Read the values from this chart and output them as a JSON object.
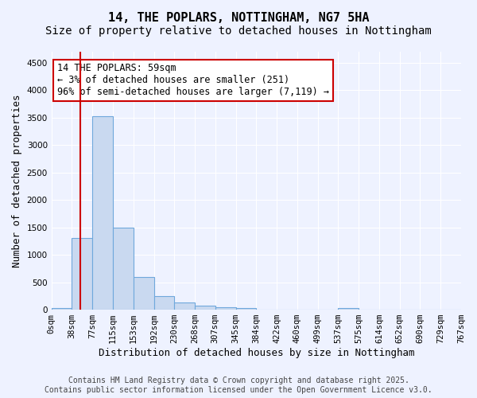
{
  "title_line1": "14, THE POPLARS, NOTTINGHAM, NG7 5HA",
  "title_line2": "Size of property relative to detached houses in Nottingham",
  "xlabel": "Distribution of detached houses by size in Nottingham",
  "ylabel": "Number of detached properties",
  "bar_values": [
    25,
    1300,
    3530,
    1500,
    600,
    255,
    130,
    70,
    50,
    25,
    0,
    0,
    0,
    0,
    30,
    0,
    0,
    0,
    0,
    0
  ],
  "bar_labels": [
    "0sqm",
    "38sqm",
    "77sqm",
    "115sqm",
    "153sqm",
    "192sqm",
    "230sqm",
    "268sqm",
    "307sqm",
    "345sqm",
    "384sqm",
    "422sqm",
    "460sqm",
    "499sqm",
    "537sqm",
    "575sqm",
    "614sqm",
    "652sqm",
    "690sqm",
    "729sqm",
    "767sqm"
  ],
  "bar_color": "#c9d9f0",
  "bar_edge_color": "#6fa8dc",
  "bar_edge_width": 0.8,
  "vline_pos": 1.42,
  "vline_color": "#cc0000",
  "vline_linewidth": 1.5,
  "annotation_text": "14 THE POPLARS: 59sqm\n← 3% of detached houses are smaller (251)\n96% of semi-detached houses are larger (7,119) →",
  "annotation_box_color": "#ffffff",
  "annotation_box_edge": "#cc0000",
  "ylim": [
    0,
    4700
  ],
  "yticks": [
    0,
    500,
    1000,
    1500,
    2000,
    2500,
    3000,
    3500,
    4000,
    4500
  ],
  "background_color": "#eef2ff",
  "grid_color": "#ffffff",
  "footer_text": "Contains HM Land Registry data © Crown copyright and database right 2025.\nContains public sector information licensed under the Open Government Licence v3.0.",
  "title_fontsize": 11,
  "subtitle_fontsize": 10,
  "xlabel_fontsize": 9,
  "ylabel_fontsize": 9,
  "tick_fontsize": 7.5,
  "annotation_fontsize": 8.5,
  "footer_fontsize": 7
}
